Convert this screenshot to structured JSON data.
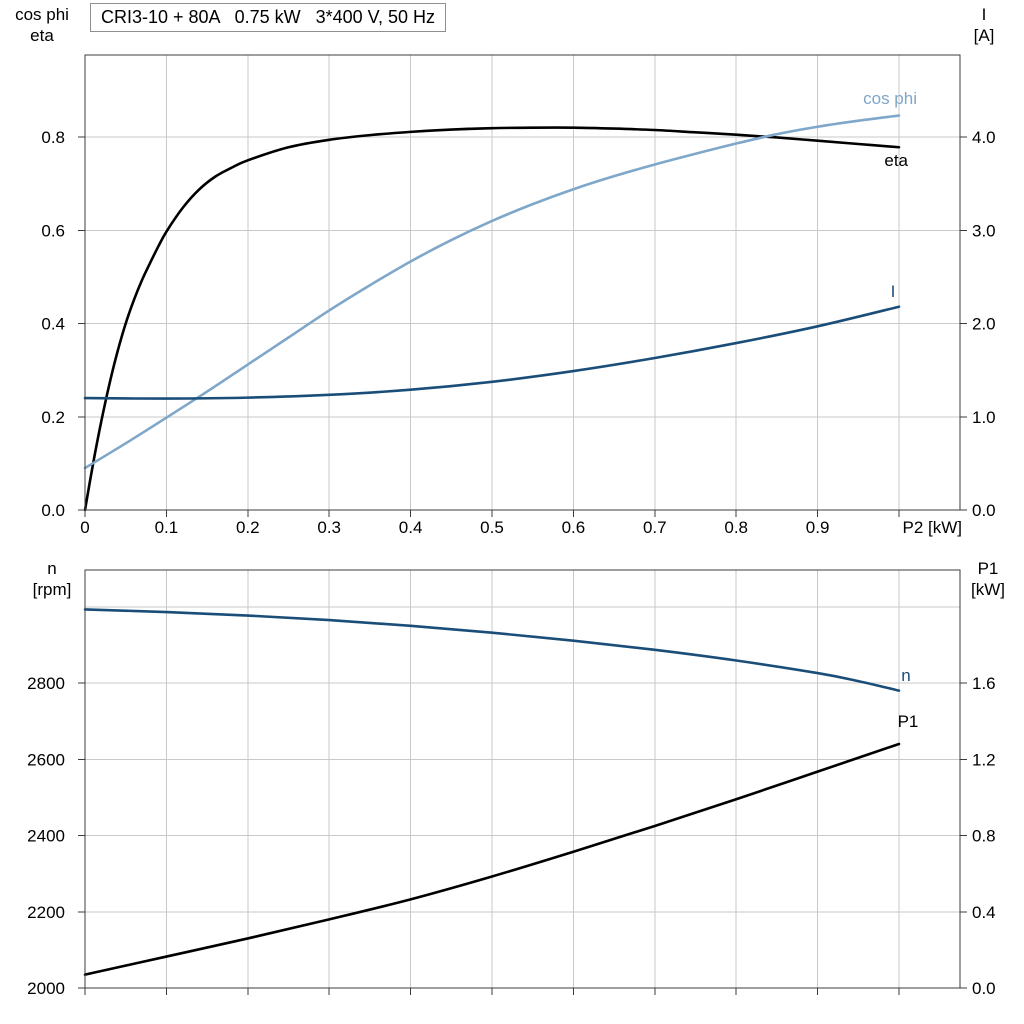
{
  "colors": {
    "grid": "#c9c9c9",
    "axis": "#3c3c3c",
    "black_curve": "#000000",
    "light_blue": "#7fa7c9",
    "dark_blue": "#1a4e79"
  },
  "chart_data": [
    {
      "type": "line",
      "title": "CRI3-10 + 80A   0.75 kW   3*400 V, 50 Hz",
      "x_axis": {
        "label": "P2 [kW]",
        "tick_labels": [
          "0",
          "0.1",
          "0.2",
          "0.3",
          "0.4",
          "0.5",
          "0.6",
          "0.7",
          "0.8",
          "0.9"
        ],
        "range": [
          0,
          1.07
        ]
      },
      "left_axis": {
        "title_lines": [
          "cos phi",
          "eta"
        ],
        "tick_labels": [
          "0.0",
          "0.2",
          "0.4",
          "0.6",
          "0.8"
        ],
        "range": [
          0,
          0.97
        ]
      },
      "right_axis": {
        "title_lines": [
          "I",
          "[A]"
        ],
        "tick_labels": [
          "0.0",
          "1.0",
          "2.0",
          "3.0",
          "4.0"
        ],
        "range": [
          0,
          4.85
        ]
      },
      "series": [
        {
          "name": "eta",
          "label": "eta",
          "axis": "left",
          "color_key": "black_curve",
          "points": [
            [
              0,
              0
            ],
            [
              0.01,
              0.1
            ],
            [
              0.02,
              0.19
            ],
            [
              0.03,
              0.27
            ],
            [
              0.04,
              0.34
            ],
            [
              0.05,
              0.4
            ],
            [
              0.06,
              0.45
            ],
            [
              0.07,
              0.493
            ],
            [
              0.08,
              0.53
            ],
            [
              0.09,
              0.565
            ],
            [
              0.1,
              0.597
            ],
            [
              0.12,
              0.648
            ],
            [
              0.14,
              0.687
            ],
            [
              0.16,
              0.715
            ],
            [
              0.18,
              0.734
            ],
            [
              0.2,
              0.75
            ],
            [
              0.25,
              0.778
            ],
            [
              0.3,
              0.794
            ],
            [
              0.35,
              0.804
            ],
            [
              0.4,
              0.811
            ],
            [
              0.45,
              0.816
            ],
            [
              0.5,
              0.819
            ],
            [
              0.55,
              0.82
            ],
            [
              0.6,
              0.82
            ],
            [
              0.65,
              0.818
            ],
            [
              0.7,
              0.815
            ],
            [
              0.75,
              0.81
            ],
            [
              0.8,
              0.805
            ],
            [
              0.85,
              0.799
            ],
            [
              0.9,
              0.792
            ],
            [
              0.95,
              0.785
            ],
            [
              1.0,
              0.778
            ]
          ]
        },
        {
          "name": "cos_phi",
          "label": "cos phi",
          "axis": "left",
          "color_key": "light_blue",
          "points": [
            [
              0,
              0.09
            ],
            [
              0.05,
              0.143
            ],
            [
              0.1,
              0.198
            ],
            [
              0.15,
              0.254
            ],
            [
              0.2,
              0.312
            ],
            [
              0.25,
              0.37
            ],
            [
              0.3,
              0.428
            ],
            [
              0.35,
              0.482
            ],
            [
              0.4,
              0.533
            ],
            [
              0.45,
              0.579
            ],
            [
              0.5,
              0.62
            ],
            [
              0.55,
              0.656
            ],
            [
              0.6,
              0.688
            ],
            [
              0.65,
              0.716
            ],
            [
              0.7,
              0.741
            ],
            [
              0.75,
              0.764
            ],
            [
              0.8,
              0.786
            ],
            [
              0.85,
              0.806
            ],
            [
              0.9,
              0.822
            ],
            [
              0.95,
              0.835
            ],
            [
              1.0,
              0.846
            ]
          ]
        },
        {
          "name": "I",
          "label": "I",
          "axis": "right",
          "color_key": "dark_blue",
          "points": [
            [
              0,
              1.2
            ],
            [
              0.1,
              1.195
            ],
            [
              0.2,
              1.205
            ],
            [
              0.3,
              1.235
            ],
            [
              0.4,
              1.29
            ],
            [
              0.5,
              1.375
            ],
            [
              0.6,
              1.49
            ],
            [
              0.7,
              1.63
            ],
            [
              0.8,
              1.79
            ],
            [
              0.9,
              1.97
            ],
            [
              1.0,
              2.18
            ]
          ]
        }
      ]
    },
    {
      "type": "line",
      "left_axis": {
        "title_lines": [
          "n",
          "[rpm]"
        ],
        "tick_labels": [
          "2000",
          "2200",
          "2400",
          "2600",
          "2800"
        ],
        "range": [
          2000,
          3096
        ]
      },
      "right_axis": {
        "title_lines": [
          "P1",
          "[kW]"
        ],
        "tick_labels": [
          "0.0",
          "0.4",
          "0.8",
          "1.2",
          "1.6"
        ],
        "range": [
          0,
          2.19
        ]
      },
      "series": [
        {
          "name": "n",
          "label": "n",
          "axis": "left",
          "color_key": "dark_blue",
          "points": [
            [
              0,
              2993
            ],
            [
              0.1,
              2986
            ],
            [
              0.2,
              2977
            ],
            [
              0.3,
              2965
            ],
            [
              0.4,
              2950
            ],
            [
              0.5,
              2932
            ],
            [
              0.6,
              2911
            ],
            [
              0.7,
              2887
            ],
            [
              0.8,
              2859
            ],
            [
              0.9,
              2826
            ],
            [
              0.95,
              2805
            ],
            [
              1.0,
              2780
            ]
          ]
        },
        {
          "name": "P1",
          "label": "P1",
          "axis": "right",
          "color_key": "black_curve",
          "points": [
            [
              0,
              0.07
            ],
            [
              0.1,
              0.165
            ],
            [
              0.2,
              0.26
            ],
            [
              0.3,
              0.36
            ],
            [
              0.4,
              0.465
            ],
            [
              0.5,
              0.585
            ],
            [
              0.6,
              0.715
            ],
            [
              0.7,
              0.85
            ],
            [
              0.8,
              0.99
            ],
            [
              0.9,
              1.135
            ],
            [
              1.0,
              1.28
            ]
          ]
        }
      ]
    }
  ]
}
